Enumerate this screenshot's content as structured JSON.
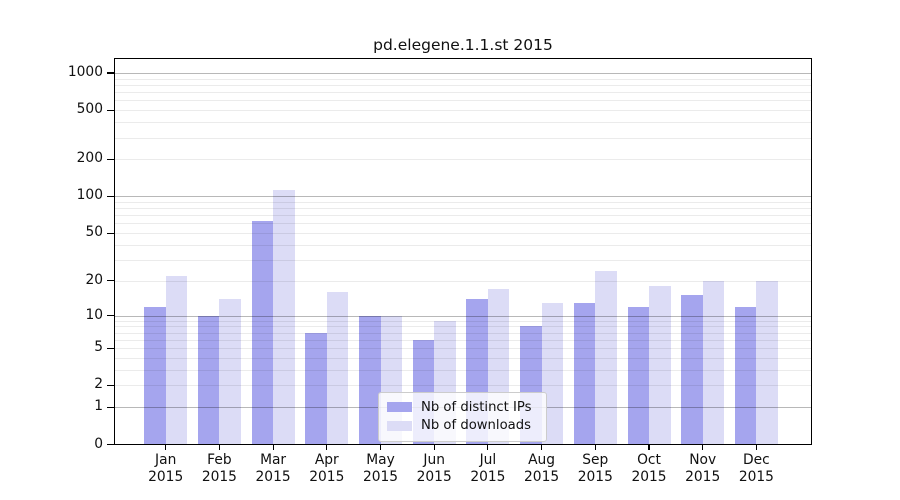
{
  "title": "pd.elegene.1.1.st 2015",
  "chart_data": {
    "type": "bar",
    "title": "pd.elegene.1.1.st 2015",
    "categories": [
      "Jan",
      "Feb",
      "Mar",
      "Apr",
      "May",
      "Jun",
      "Jul",
      "Aug",
      "Sep",
      "Oct",
      "Nov",
      "Dec"
    ],
    "x_tick_year": "2015",
    "series": [
      {
        "name": "Nb of distinct IPs",
        "color": "#a5a5ee",
        "values": [
          12,
          10,
          63,
          7,
          10,
          6,
          14,
          8,
          13,
          12,
          15,
          12
        ]
      },
      {
        "name": "Nb of downloads",
        "color": "#dcdcf6",
        "values": [
          22,
          14,
          112,
          16,
          10,
          9,
          17,
          13,
          24,
          18,
          20,
          20
        ]
      }
    ],
    "y_ticks": [
      0,
      1,
      2,
      5,
      10,
      20,
      50,
      100,
      200,
      500,
      1000
    ],
    "y_scale": "log10(value+1)",
    "ylim": [
      0,
      1320
    ],
    "grid": "on",
    "legend_position": "lower center",
    "grid_major_values": [
      1,
      10,
      100,
      1000
    ],
    "axis_color": "#000000",
    "background_color": "#ffffff"
  }
}
